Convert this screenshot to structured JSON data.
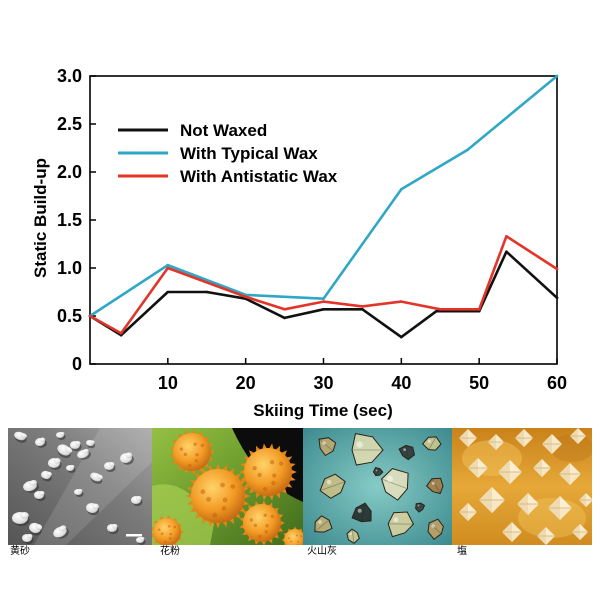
{
  "chart_data": {
    "type": "line",
    "xlabel": "Skiing Time (sec)",
    "ylabel": "Static Build-up",
    "xlim": [
      0,
      60
    ],
    "ylim": [
      0,
      3.0
    ],
    "x_ticks": [
      10,
      20,
      30,
      40,
      50,
      60
    ],
    "x_tick_labels": [
      "10",
      "20",
      "30",
      "40",
      "50",
      "60"
    ],
    "y_ticks": [
      0,
      0.5,
      1.0,
      1.5,
      2.0,
      2.5,
      3.0
    ],
    "y_tick_labels": [
      "0",
      "0.5",
      "1.0",
      "1.5",
      "2.0",
      "2.5",
      "3.0"
    ],
    "grid": false,
    "legend_position": "top-left",
    "series": [
      {
        "name": "Not Waxed",
        "color": "#111111",
        "x": [
          0,
          4,
          10,
          15,
          20,
          25,
          30,
          35,
          40,
          44.5,
          50,
          53.5,
          60
        ],
        "y": [
          0.5,
          0.3,
          0.75,
          0.75,
          0.68,
          0.48,
          0.57,
          0.57,
          0.28,
          0.55,
          0.55,
          1.17,
          0.69
        ]
      },
      {
        "name": "With Typical Wax",
        "color": "#2fa8c6",
        "x": [
          0,
          10,
          20,
          30,
          40,
          48.5,
          60
        ],
        "y": [
          0.5,
          1.03,
          0.72,
          0.68,
          1.82,
          2.23,
          3.0
        ]
      },
      {
        "name": "With Antistatic Wax",
        "color": "#e3342a",
        "x": [
          0,
          4,
          10,
          20,
          25,
          30,
          35,
          40,
          45,
          50,
          53.5,
          60
        ],
        "y": [
          0.5,
          0.32,
          1.0,
          0.7,
          0.57,
          0.65,
          0.6,
          0.65,
          0.57,
          0.57,
          1.33,
          0.99
        ]
      }
    ]
  },
  "photos": [
    {
      "label": "黄砂"
    },
    {
      "label": "花粉"
    },
    {
      "label": "火山灰"
    },
    {
      "label": "塩"
    }
  ]
}
